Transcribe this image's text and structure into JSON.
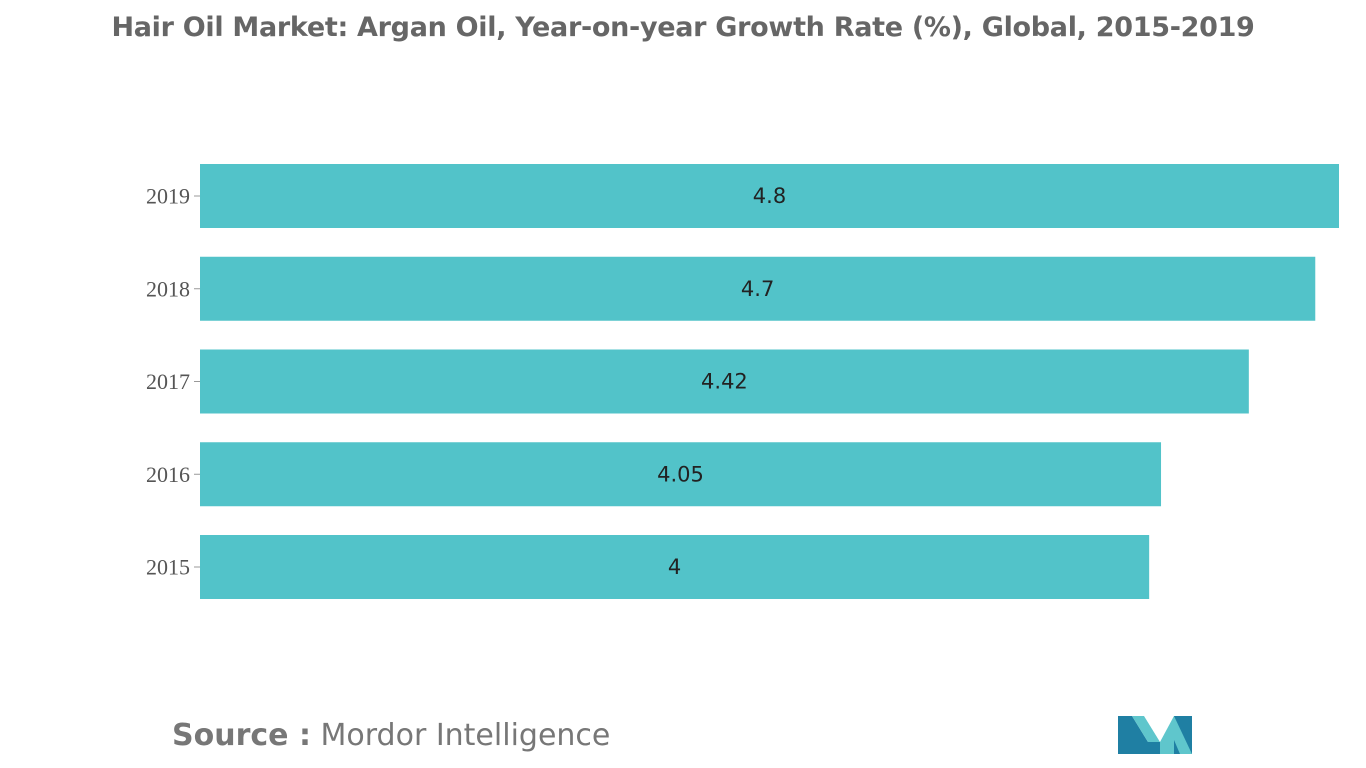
{
  "chart_data": {
    "type": "bar",
    "orientation": "horizontal",
    "title": "Hair Oil Market: Argan Oil, Year-on-year Growth Rate (%), Global, 2015-2019",
    "categories": [
      "2019",
      "2018",
      "2017",
      "2016",
      "2015"
    ],
    "values": [
      4.8,
      4.7,
      4.42,
      4.05,
      4
    ],
    "value_labels": [
      "4.8",
      "4.7",
      "4.42",
      "4.05",
      "4"
    ],
    "xlabel": "",
    "ylabel": "",
    "xlim": [
      0,
      4.8
    ],
    "grid": false,
    "legend": "none",
    "bar_color": "#52c3c9"
  },
  "source": {
    "label": "Source :",
    "value": "Mordor Intelligence"
  },
  "colors": {
    "title": "#666666",
    "bar": "#52c3c9",
    "logo_dark": "#1f7fa3",
    "logo_light": "#5fc6cc"
  }
}
